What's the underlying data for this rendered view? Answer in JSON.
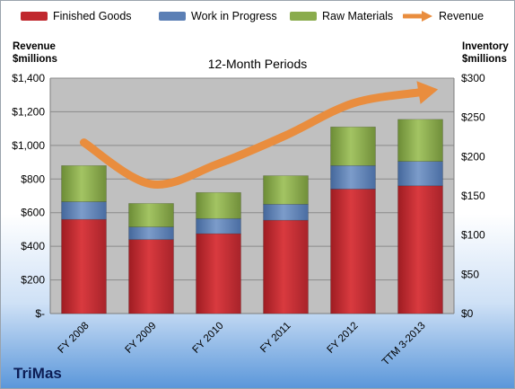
{
  "legend": {
    "finished": "Finished Goods",
    "wip": "Work in Progress",
    "raw": "Raw Materials",
    "revenue": "Revenue"
  },
  "left_axis_label": [
    "Revenue",
    "$millions"
  ],
  "right_axis_label": [
    "Inventory",
    "$millions"
  ],
  "company": "TriMas",
  "colors": {
    "finished": "#c0282e",
    "wip": "#5b7fb5",
    "raw": "#8aac4d",
    "revenue": "#e98d3e",
    "plot_bg": "#c0c0c0"
  },
  "chart_data": {
    "type": "bar",
    "stacked": true,
    "title": "12-Month Periods",
    "categories": [
      "FY 2008",
      "FY 2009",
      "FY 2010",
      "FY 2011",
      "FY 2012",
      "TTM 3-2013"
    ],
    "series": [
      {
        "name": "Finished Goods",
        "axis": "left",
        "values": [
          560,
          440,
          475,
          555,
          740,
          760
        ]
      },
      {
        "name": "Work in Progress",
        "axis": "left",
        "values": [
          105,
          75,
          90,
          95,
          140,
          145
        ]
      },
      {
        "name": "Raw Materials",
        "axis": "left",
        "values": [
          215,
          140,
          155,
          170,
          230,
          250
        ]
      },
      {
        "name": "Revenue",
        "type": "line",
        "axis": "right",
        "values": [
          218,
          165,
          191,
          227,
          268,
          282
        ]
      }
    ],
    "left_axis": {
      "min": 0,
      "max": 1400,
      "step": 200,
      "ticks": [
        "$-",
        "$200",
        "$400",
        "$600",
        "$800",
        "$1,000",
        "$1,200",
        "$1,400"
      ]
    },
    "right_axis": {
      "min": 0,
      "max": 300,
      "step": 50,
      "ticks": [
        "$0",
        "$50",
        "$100",
        "$150",
        "$200",
        "$250",
        "$300"
      ]
    },
    "grid": true,
    "legend_position": "top"
  }
}
